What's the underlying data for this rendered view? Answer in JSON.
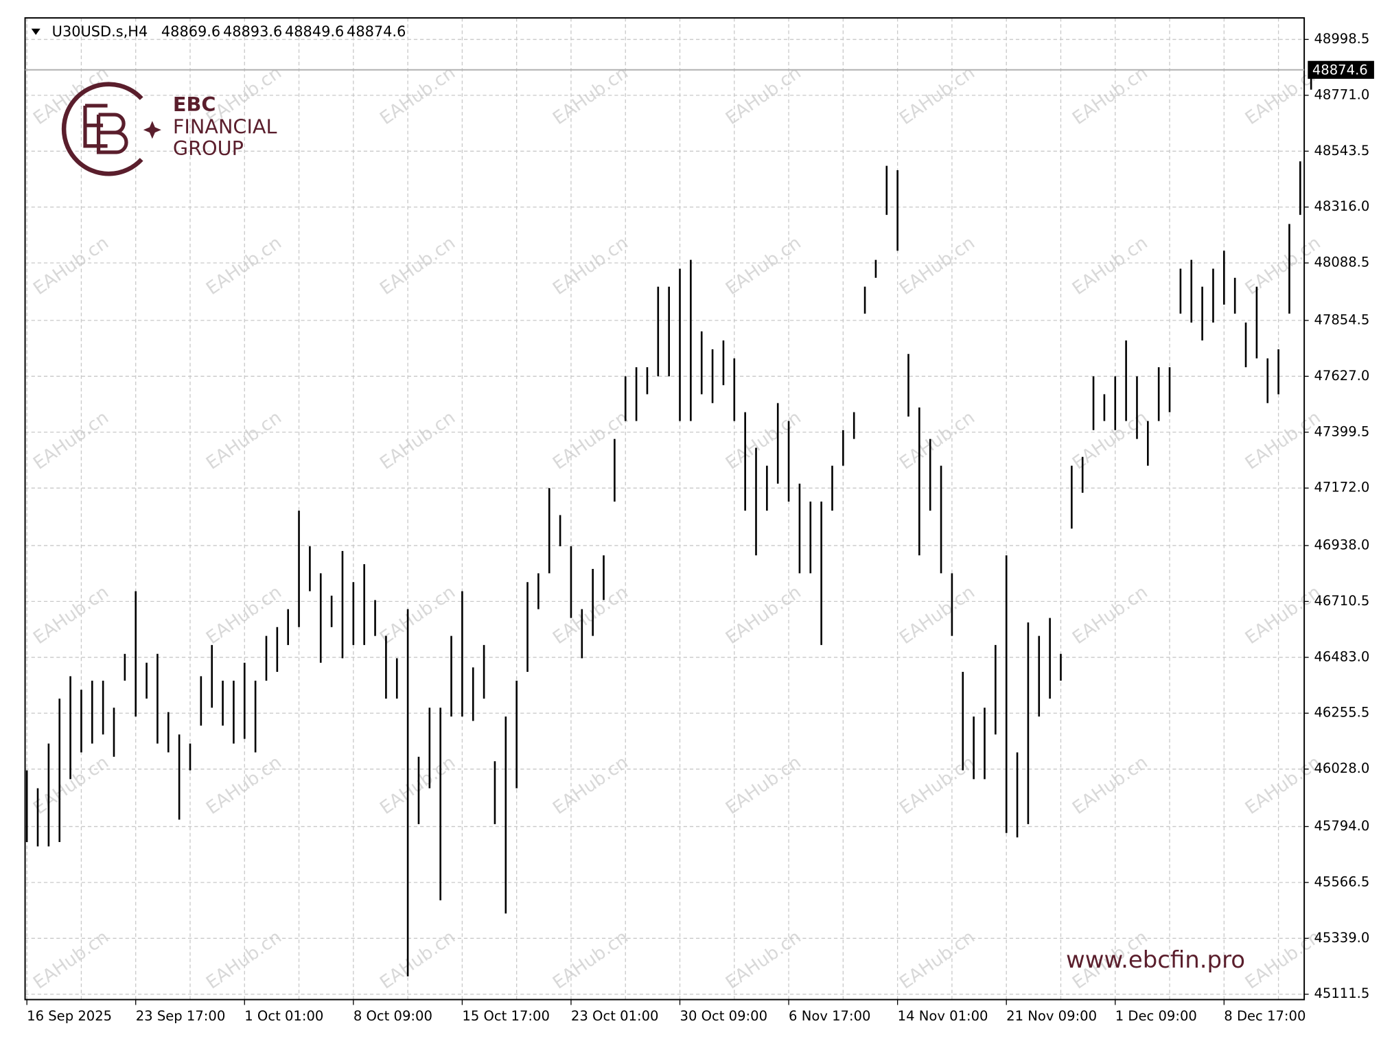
{
  "chart_data": {
    "type": "ohlc",
    "title": "U30USD.s,H4",
    "header_values": [
      48869.6,
      48893.6,
      48849.6,
      48874.6
    ],
    "last_price": 48874.6,
    "annotations": [
      "EBC",
      "FINANCIAL",
      "GROUP",
      "www.ebcfin.pro",
      "EAHub.cn"
    ],
    "color": "#000000",
    "grid": true,
    "ylim": [
      45089.6,
      49086.0
    ],
    "yticks": [
      48998.5,
      {
        "value": 48771.0,
        "label": "48771.0"
      },
      48543.5,
      {
        "value": 48316.0,
        "label": "48316.0"
      },
      48088.5,
      47854.5,
      {
        "value": 47627.0,
        "label": "47627.0"
      },
      47399.5,
      {
        "value": 47172.0,
        "label": "47172.0"
      },
      {
        "value": 46938.0,
        "label": "46938.0"
      },
      46710.5,
      {
        "value": 46483.0,
        "label": "46483.0"
      },
      46255.5,
      {
        "value": 46028.0,
        "label": "46028.0"
      },
      {
        "value": 45794.0,
        "label": "45794.0"
      },
      45566.5,
      {
        "value": 45339.0,
        "label": "45339.0"
      },
      45111.5
    ],
    "categories": [
      "16 Sep 2025",
      null,
      null,
      null,
      null,
      null,
      null,
      null,
      null,
      null,
      "23 Sep 17:00",
      null,
      null,
      null,
      null,
      null,
      null,
      null,
      null,
      null,
      "1 Oct 01:00",
      null,
      null,
      null,
      null,
      null,
      null,
      null,
      null,
      null,
      "8 Oct 09:00",
      null,
      null,
      null,
      null,
      null,
      null,
      null,
      null,
      null,
      "15 Oct 17:00",
      null,
      null,
      null,
      null,
      null,
      null,
      null,
      null,
      null,
      "23 Oct 01:00",
      null,
      null,
      null,
      null,
      null,
      null,
      null,
      null,
      null,
      "30 Oct 09:00",
      null,
      null,
      null,
      null,
      null,
      null,
      null,
      null,
      null,
      "6 Nov 17:00",
      null,
      null,
      null,
      null,
      null,
      null,
      null,
      null,
      null,
      "14 Nov 01:00",
      null,
      null,
      null,
      null,
      null,
      null,
      null,
      null,
      null,
      "21 Nov 09:00",
      null,
      null,
      null,
      null,
      null,
      null,
      null,
      null,
      null,
      "1 Dec 09:00",
      null,
      null,
      null,
      null,
      null,
      null,
      null,
      null,
      null,
      "8 Dec 17:00",
      null,
      null,
      null,
      null,
      null,
      null,
      null,
      null
    ],
    "high": [
      46023,
      45950,
      46132,
      46315,
      46406,
      46351,
      46388,
      46388,
      46278,
      46497,
      46752,
      46461,
      46497,
      46260,
      46169,
      46132,
      46406,
      46533,
      46388,
      46388,
      46461,
      46388,
      46570,
      46606,
      46679,
      47080,
      46935,
      46825,
      46734,
      46916,
      46789,
      46862,
      46716,
      46570,
      46479,
      46679,
      46078,
      46278,
      46278,
      46570,
      46752,
      46442,
      46533,
      46060,
      46242,
      46388,
      46789,
      46825,
      47172,
      47062,
      46935,
      46679,
      46843,
      46898,
      47372,
      47627,
      47664,
      47664,
      47992,
      47992,
      48065,
      48101,
      47810,
      47737,
      47773,
      47700,
      47481,
      47336,
      47263,
      47518,
      47445,
      47190,
      47117,
      47117,
      47263,
      47408,
      47481,
      47992,
      48101,
      48484,
      48466,
      47718,
      47500,
      47372,
      47263,
      46825,
      46424,
      46242,
      46278,
      46533,
      46898,
      46096,
      46625,
      46570,
      46643,
      46497,
      47263,
      47299,
      47627,
      47554,
      47627,
      47773,
      47627,
      47445,
      47664,
      47664,
      48065,
      48101,
      47992,
      48065,
      48138,
      48028,
      47846,
      47992,
      47700,
      47737,
      48247,
      48502,
      48885
    ],
    "low": [
      45731,
      45713,
      45713,
      45731,
      45987,
      46096,
      46132,
      46169,
      46078,
      46388,
      46242,
      46315,
      46132,
      46096,
      45822,
      46023,
      46205,
      46278,
      46205,
      46132,
      46151,
      46096,
      46388,
      46424,
      46533,
      46606,
      46752,
      46461,
      46606,
      46479,
      46533,
      46533,
      46570,
      46315,
      46315,
      45184,
      45804,
      45950,
      45494,
      46242,
      46242,
      46224,
      46315,
      45804,
      45440,
      45950,
      46424,
      46679,
      46825,
      46935,
      46643,
      46479,
      46570,
      46716,
      47117,
      47445,
      47445,
      47554,
      47627,
      47627,
      47445,
      47445,
      47554,
      47518,
      47591,
      47445,
      47080,
      46898,
      47080,
      47190,
      47117,
      46825,
      46825,
      46533,
      47080,
      47263,
      47372,
      47882,
      48028,
      48284,
      48138,
      47463,
      46898,
      47080,
      46825,
      46570,
      46023,
      45987,
      45987,
      46169,
      45768,
      45750,
      45804,
      46242,
      46315,
      46388,
      47007,
      47153,
      47408,
      47445,
      47408,
      47445,
      47372,
      47263,
      47445,
      47481,
      47882,
      47846,
      47773,
      47846,
      47919,
      47882,
      47664,
      47700,
      47518,
      47554,
      47882,
      48284,
      48794
    ]
  }
}
